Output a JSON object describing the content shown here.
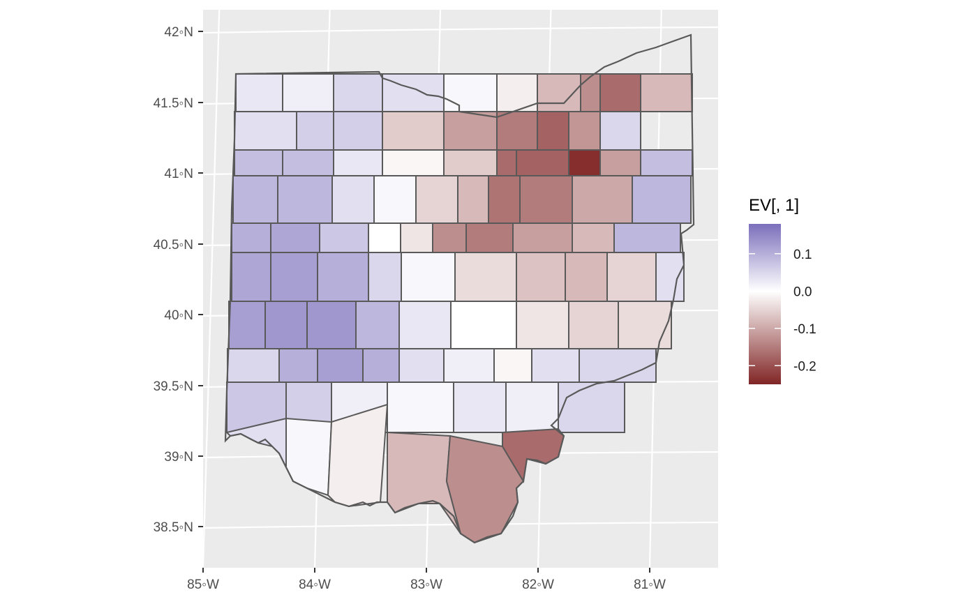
{
  "map": {
    "type": "choropleth",
    "region": "Ohio counties",
    "lat_ticks": [
      "42◦N",
      "41.5◦N",
      "41◦N",
      "40.5◦N",
      "40◦N",
      "39.5◦N",
      "39◦N",
      "38.5◦N"
    ],
    "lon_ticks": [
      "85◦W",
      "84◦W",
      "83◦W",
      "82◦W",
      "81◦W"
    ],
    "legend": {
      "title": "EV[, 1]",
      "labels": [
        "0.1",
        "0.0",
        "-0.1",
        "-0.2"
      ],
      "colors": {
        "high": "#7b6fbb",
        "mid": "#ffffff",
        "low": "#812525"
      },
      "placement": "right"
    },
    "colors": {
      "panel": "#ebebeb",
      "grid": "#ffffff",
      "border": "#595959"
    }
  },
  "chart_data": {
    "type": "heatmap",
    "subtype": "choropleth map",
    "title": "",
    "xlabel": "",
    "ylabel": "",
    "xlim": [
      -85,
      -80.4
    ],
    "ylim": [
      38.2,
      42.15
    ],
    "x_ticks": [
      -85,
      -84,
      -83,
      -82,
      -81
    ],
    "y_ticks": [
      42,
      41.5,
      41,
      40.5,
      40,
      39.5,
      39,
      38.5
    ],
    "color_scale": {
      "min": -0.25,
      "max": 0.18,
      "ticks": [
        0.1,
        0.0,
        -0.1,
        -0.2
      ]
    },
    "grid": true,
    "legend_placement": "right",
    "values": [
      0.03,
      0.02,
      0.05,
      0.04,
      0.01,
      -0.02,
      -0.08,
      -0.13,
      -0.17,
      -0.08,
      0.04,
      0.06,
      0.06,
      -0.06,
      -0.11,
      -0.15,
      -0.18,
      -0.12,
      0.05,
      0.08,
      0.08,
      0.03,
      -0.01,
      -0.06,
      -0.17,
      -0.18,
      -0.24,
      -0.11,
      0.08,
      0.09,
      0.09,
      0.04,
      0.01,
      -0.05,
      -0.08,
      -0.16,
      -0.15,
      -0.1,
      0.09,
      0.1,
      0.11,
      0.07,
      0.0,
      -0.03,
      -0.13,
      -0.15,
      -0.11,
      -0.08,
      0.09,
      0.11,
      0.12,
      0.1,
      0.05,
      0.01,
      -0.04,
      -0.07,
      -0.08,
      -0.05,
      0.04,
      0.12,
      0.13,
      0.13,
      0.09,
      0.03,
      0.0,
      -0.03,
      -0.05,
      -0.04,
      0.05,
      0.1,
      0.12,
      0.1,
      0.04,
      0.02,
      -0.01,
      0.04,
      0.05,
      0.07,
      0.06,
      0.02,
      0.01
    ]
  }
}
